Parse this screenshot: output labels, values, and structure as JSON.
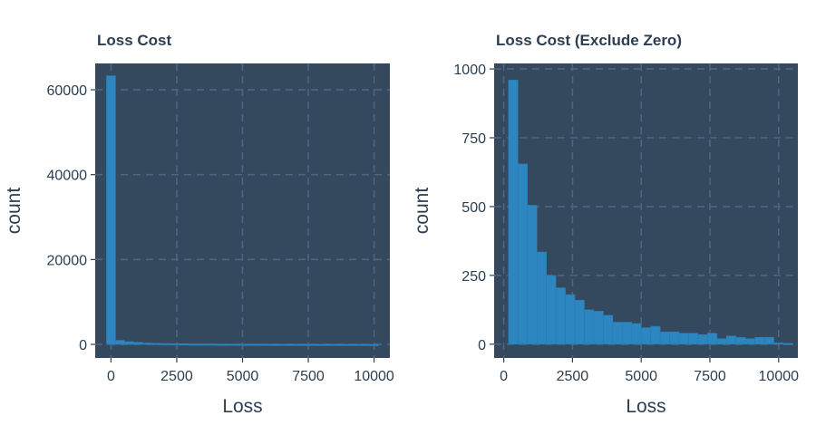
{
  "chart_data": [
    {
      "type": "bar",
      "title": "Loss Cost",
      "xlabel": "Loss",
      "ylabel": "count",
      "xlim": [
        -600,
        10600
      ],
      "ylim": [
        -3200,
        66200
      ],
      "xticks": [
        0,
        2500,
        5000,
        7500,
        10000
      ],
      "yticks": [
        0,
        20000,
        40000,
        60000
      ],
      "xtick_labels": [
        "0",
        "2500",
        "5000",
        "7500",
        "10000"
      ],
      "ytick_labels": [
        "0",
        "20000",
        "40000",
        "60000"
      ],
      "grid": true,
      "panel_color": "#34495e",
      "bar_color": "#2e86c1",
      "bin_width": 345,
      "bins_left": [
        -172,
        172,
        517,
        862,
        1207,
        1552,
        1897,
        2241,
        2586,
        2931,
        3276,
        3621,
        3966,
        4310,
        4655,
        5000,
        5345,
        5690,
        6034,
        6379,
        6724,
        7069,
        7414,
        7759,
        8103,
        8448,
        8793,
        9138,
        9483,
        9828
      ],
      "values": [
        63300,
        960,
        655,
        505,
        335,
        250,
        205,
        180,
        160,
        125,
        120,
        105,
        80,
        80,
        75,
        60,
        65,
        45,
        45,
        40,
        40,
        35,
        40,
        20,
        30,
        25,
        20,
        25,
        25,
        5
      ]
    },
    {
      "type": "bar",
      "title": "Loss Cost (Exclude Zero)",
      "xlabel": "Loss",
      "ylabel": "count",
      "xlim": [
        -350,
        10700
      ],
      "ylim": [
        -50,
        1020
      ],
      "xticks": [
        0,
        2500,
        5000,
        7500,
        10000
      ],
      "yticks": [
        0,
        250,
        500,
        750,
        1000
      ],
      "xtick_labels": [
        "0",
        "2500",
        "5000",
        "7500",
        "10000"
      ],
      "ytick_labels": [
        "0",
        "250",
        "500",
        "750",
        "1000"
      ],
      "grid": true,
      "panel_color": "#34495e",
      "bar_color": "#2e86c1",
      "bin_width": 345,
      "bins_left": [
        172,
        517,
        862,
        1207,
        1552,
        1897,
        2241,
        2586,
        2931,
        3276,
        3621,
        3966,
        4310,
        4655,
        5000,
        5345,
        5690,
        6034,
        6379,
        6724,
        7069,
        7414,
        7759,
        8103,
        8448,
        8793,
        9138,
        9483,
        9828,
        10172
      ],
      "values": [
        960,
        655,
        505,
        335,
        250,
        205,
        180,
        160,
        125,
        120,
        105,
        80,
        80,
        75,
        60,
        65,
        45,
        45,
        40,
        40,
        35,
        40,
        20,
        30,
        25,
        20,
        25,
        25,
        5,
        3
      ]
    }
  ]
}
